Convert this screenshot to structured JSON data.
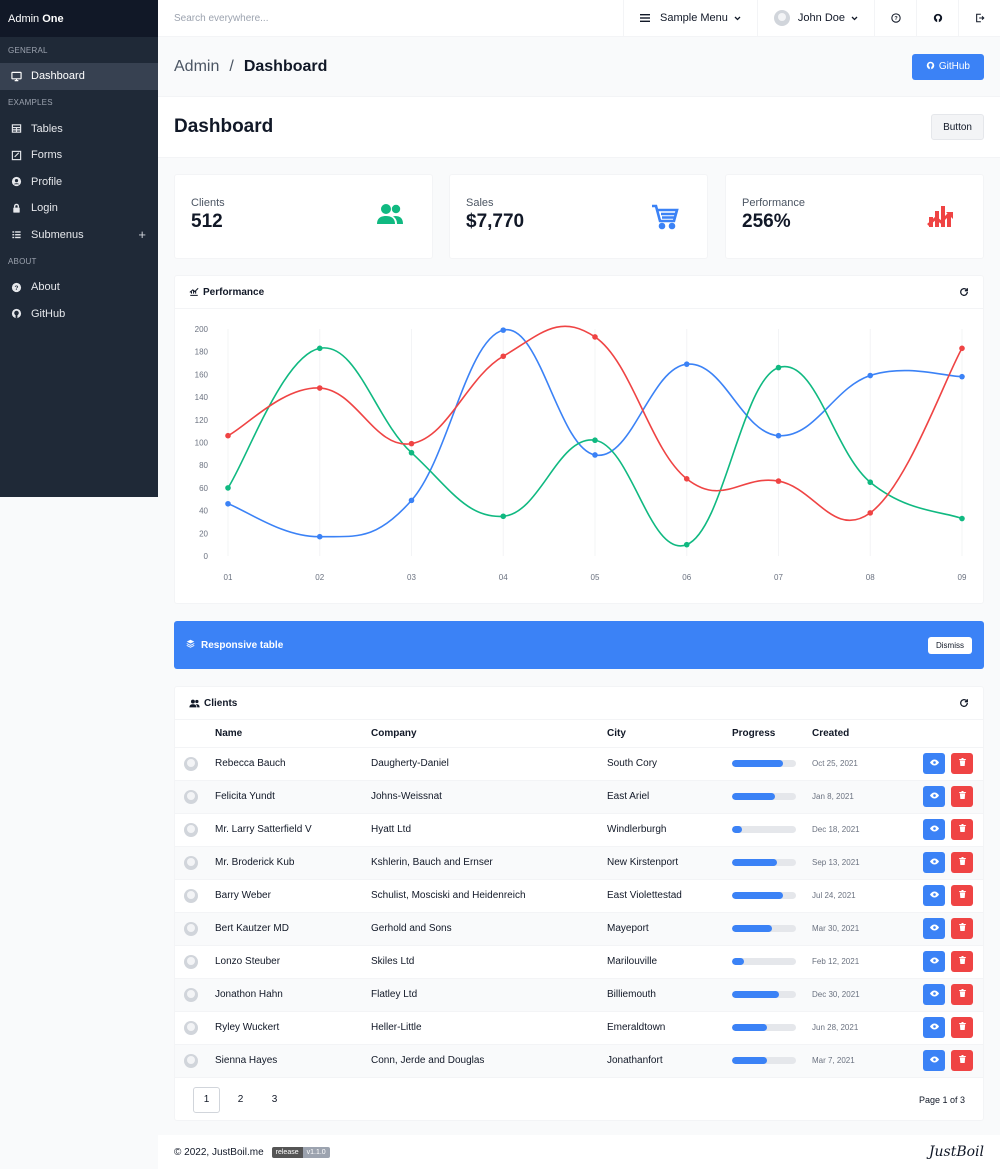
{
  "brand": {
    "name": "Admin",
    "bold": "One"
  },
  "sidebar": {
    "groups": [
      {
        "label": "GENERAL",
        "items": [
          {
            "label": "Dashboard",
            "icon": "monitor-icon",
            "active": true
          }
        ]
      },
      {
        "label": "EXAMPLES",
        "items": [
          {
            "label": "Tables",
            "icon": "table-icon"
          },
          {
            "label": "Forms",
            "icon": "form-icon"
          },
          {
            "label": "Profile",
            "icon": "profile-icon"
          },
          {
            "label": "Login",
            "icon": "lock-icon"
          },
          {
            "label": "Submenus",
            "icon": "list-icon",
            "plus": "+"
          }
        ]
      },
      {
        "label": "ABOUT",
        "items": [
          {
            "label": "About",
            "icon": "help-icon"
          },
          {
            "label": "GitHub",
            "icon": "github-icon"
          }
        ]
      }
    ]
  },
  "topbar": {
    "search_placeholder": "Search everywhere...",
    "menu_label": "Sample Menu",
    "user_name": "John Doe"
  },
  "titlebar": {
    "crumb_root": "Admin",
    "crumb_sep": "/",
    "crumb_current": "Dashboard",
    "github_label": "GitHub"
  },
  "hero": {
    "title": "Dashboard",
    "button_label": "Button"
  },
  "widgets": [
    {
      "label": "Clients",
      "value": "512",
      "icon": "users-icon",
      "color": "#10b981"
    },
    {
      "label": "Sales",
      "value": "$7,770",
      "icon": "cart-icon",
      "color": "#3b82f6"
    },
    {
      "label": "Performance",
      "value": "256%",
      "icon": "trending-icon",
      "color": "#ef4444"
    }
  ],
  "chart_card": {
    "title": "Performance"
  },
  "chart_data": {
    "type": "line",
    "categories": [
      "01",
      "02",
      "03",
      "04",
      "05",
      "06",
      "07",
      "08",
      "09"
    ],
    "ylim": [
      0,
      200
    ],
    "yticks": [
      0,
      20,
      40,
      60,
      80,
      100,
      120,
      140,
      160,
      180,
      200
    ],
    "grid": true,
    "series": [
      {
        "color": "#3b82f6",
        "values": [
          46,
          17,
          49,
          199,
          89,
          169,
          106,
          159,
          158
        ]
      },
      {
        "color": "#10b981",
        "values": [
          60,
          183,
          91,
          35,
          102,
          10,
          166,
          65,
          33
        ]
      },
      {
        "color": "#ef4444",
        "values": [
          106,
          148,
          99,
          176,
          193,
          68,
          66,
          38,
          183
        ]
      }
    ]
  },
  "notice": {
    "title": "Responsive table",
    "dismiss_label": "Dismiss"
  },
  "clients": {
    "title": "Clients",
    "columns": [
      "Name",
      "Company",
      "City",
      "Progress",
      "Created"
    ],
    "rows": [
      {
        "name": "Rebecca Bauch",
        "company": "Daugherty-Daniel",
        "city": "South Cory",
        "progress": 0.79,
        "created": "Oct 25, 2021"
      },
      {
        "name": "Felicita Yundt",
        "company": "Johns-Weissnat",
        "city": "East Ariel",
        "progress": 0.67,
        "created": "Jan 8, 2021"
      },
      {
        "name": "Mr. Larry Satterfield V",
        "company": "Hyatt Ltd",
        "city": "Windlerburgh",
        "progress": 0.16,
        "created": "Dec 18, 2021"
      },
      {
        "name": "Mr. Broderick Kub",
        "company": "Kshlerin, Bauch and Ernser",
        "city": "New Kirstenport",
        "progress": 0.71,
        "created": "Sep 13, 2021"
      },
      {
        "name": "Barry Weber",
        "company": "Schulist, Mosciski and Heidenreich",
        "city": "East Violettestad",
        "progress": 0.8,
        "created": "Jul 24, 2021"
      },
      {
        "name": "Bert Kautzer MD",
        "company": "Gerhold and Sons",
        "city": "Mayeport",
        "progress": 0.62,
        "created": "Mar 30, 2021"
      },
      {
        "name": "Lonzo Steuber",
        "company": "Skiles Ltd",
        "city": "Marilouville",
        "progress": 0.18,
        "created": "Feb 12, 2021"
      },
      {
        "name": "Jonathon Hahn",
        "company": "Flatley Ltd",
        "city": "Billiemouth",
        "progress": 0.74,
        "created": "Dec 30, 2021"
      },
      {
        "name": "Ryley Wuckert",
        "company": "Heller-Little",
        "city": "Emeraldtown",
        "progress": 0.54,
        "created": "Jun 28, 2021"
      },
      {
        "name": "Sienna Hayes",
        "company": "Conn, Jerde and Douglas",
        "city": "Jonathanfort",
        "progress": 0.55,
        "created": "Mar 7, 2021"
      }
    ],
    "pages": [
      "1",
      "2",
      "3"
    ],
    "page_info": "Page 1 of 3"
  },
  "footer": {
    "copyright": "© 2022, JustBoil.me",
    "badge_left": "release",
    "badge_right": "v1.1.0",
    "logo": "JustBoil"
  }
}
